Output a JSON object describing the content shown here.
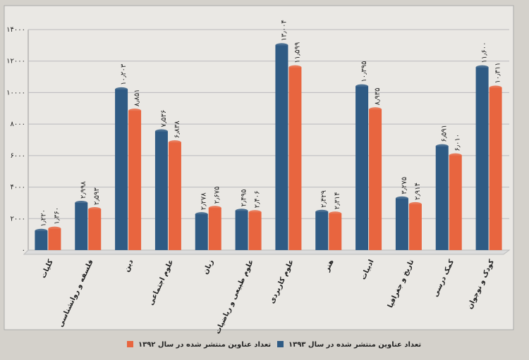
{
  "chart_data": {
    "type": "bar",
    "categories": [
      "کلیات",
      "فلسفه و روانشناسی",
      "دین",
      "علوم اجتماعی",
      "زبان",
      "علوم طبیعی و ریاضیات",
      "علوم کاربردی",
      "هنر",
      "ادبیات",
      "تاریخ و جغرافیا",
      "کمک درسی",
      "کودک و نوجوان"
    ],
    "series": [
      {
        "name": "تعداد عناوین منتشر شده در سال ۱۳۹۳",
        "color": "#2f5b84",
        "values": [
          1220,
          2998,
          10203,
          7536,
          2278,
          2495,
          13004,
          2429,
          10395,
          3275,
          6591,
          11600
        ],
        "value_labels": [
          "۱٫۲۲۰",
          "۲٫۹۹۸",
          "۱۰٫۲۰۳",
          "۷٫۵۳۶",
          "۲٫۲۷۸",
          "۲٫۴۹۵",
          "۱۳٫۰۰۴",
          "۲٫۴۲۹",
          "۱۰٫۳۹۵",
          "۳٫۲۷۵",
          "۶٫۵۹۱",
          "۱۱٫۶۰۰"
        ]
      },
      {
        "name": "تعداد عناوین منتشر شده در سال ۱۳۹۲",
        "color": "#e8653f",
        "values": [
          1360,
          2593,
          8851,
          6838,
          2675,
          2406,
          11599,
          2314,
          8935,
          2914,
          6010,
          10311
        ],
        "value_labels": [
          "۱٫۳۶۰",
          "۲٫۵۹۳",
          "۸٫۸۵۱",
          "۶٫۸۳۸",
          "۲٫۶۷۵",
          "۲٫۴۰۶",
          "۱۱٫۵۹۹",
          "۲٫۳۱۴",
          "۸٫۹۳۵",
          "۲٫۹۱۴",
          "۶٫۰۱۰",
          "۱۰٫۳۱۱"
        ]
      }
    ],
    "ylim": [
      0,
      14000
    ],
    "yticks": [
      {
        "value": 0,
        "label": "۰"
      },
      {
        "value": 2000,
        "label": "۲۰۰۰"
      },
      {
        "value": 4000,
        "label": "۴۰۰۰"
      },
      {
        "value": 6000,
        "label": "۶۰۰۰"
      },
      {
        "value": 8000,
        "label": "۸۰۰۰"
      },
      {
        "value": 10000,
        "label": "۱۰۰۰۰"
      },
      {
        "value": 12000,
        "label": "۱۲۰۰۰"
      },
      {
        "value": 14000,
        "label": "۱۴۰۰۰"
      }
    ],
    "grid": true,
    "legend": "bottom"
  }
}
